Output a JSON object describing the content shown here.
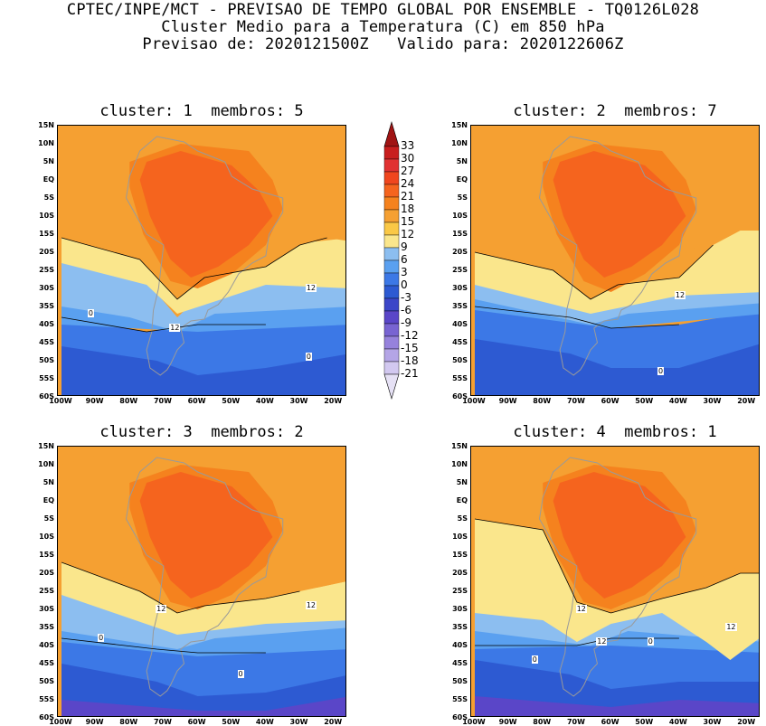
{
  "header": {
    "line1": "CPTEC/INPE/MCT - PREVISAO DE TEMPO GLOBAL POR ENSEMBLE - TQ0126L028",
    "line2": "Cluster Medio para a Temperatura (C) em 850 hPa",
    "line3": "Previsao de: 2020121500Z   Valido para: 2020122606Z"
  },
  "panels": [
    {
      "title": "cluster: 1  membros: 5",
      "contour_labels": [
        "12",
        "12",
        "0",
        "0"
      ]
    },
    {
      "title": "cluster: 2  membros: 7",
      "contour_labels": [
        "12",
        "0"
      ]
    },
    {
      "title": "cluster: 3  membros: 2",
      "contour_labels": [
        "12",
        "12",
        "0",
        "0"
      ]
    },
    {
      "title": "cluster: 4  membros: 1",
      "contour_labels": [
        "12",
        "12",
        "12",
        "0",
        "0"
      ]
    }
  ],
  "lat_labels": [
    "15N",
    "10N",
    "5N",
    "EQ",
    "5S",
    "10S",
    "15S",
    "20S",
    "25S",
    "30S",
    "35S",
    "40S",
    "45S",
    "50S",
    "55S",
    "60S"
  ],
  "lon_labels": [
    "100W",
    "90W",
    "80W",
    "70W",
    "60W",
    "50W",
    "40W",
    "30W",
    "20W"
  ],
  "colorbar": {
    "labels": [
      "33",
      "30",
      "27",
      "24",
      "21",
      "18",
      "15",
      "12",
      "9",
      "6",
      "3",
      "0",
      "-3",
      "-6",
      "-9",
      "-12",
      "-15",
      "-18",
      "-21"
    ],
    "colors": [
      "#a01414",
      "#c81e1e",
      "#e13232",
      "#f0461e",
      "#f5641e",
      "#f5821e",
      "#f5a032",
      "#fac846",
      "#fae68c",
      "#8cbef0",
      "#5aa0f0",
      "#3c78e6",
      "#2d5ad2",
      "#3c46c8",
      "#5a46c8",
      "#7864d2",
      "#9682dc",
      "#b4a5e6",
      "#d2c8f0",
      "#e6e1f5"
    ]
  },
  "colors": {
    "warm_core": "#f5641e",
    "orange": "#f5821e",
    "light_orange": "#f5a032",
    "yellow": "#fac846",
    "pale_yellow": "#fae68c",
    "light_blue": "#8cbef0",
    "mid_blue": "#5aa0f0",
    "blue": "#3c78e6",
    "dark_blue": "#2d5ad2",
    "purple": "#5a46c8"
  }
}
